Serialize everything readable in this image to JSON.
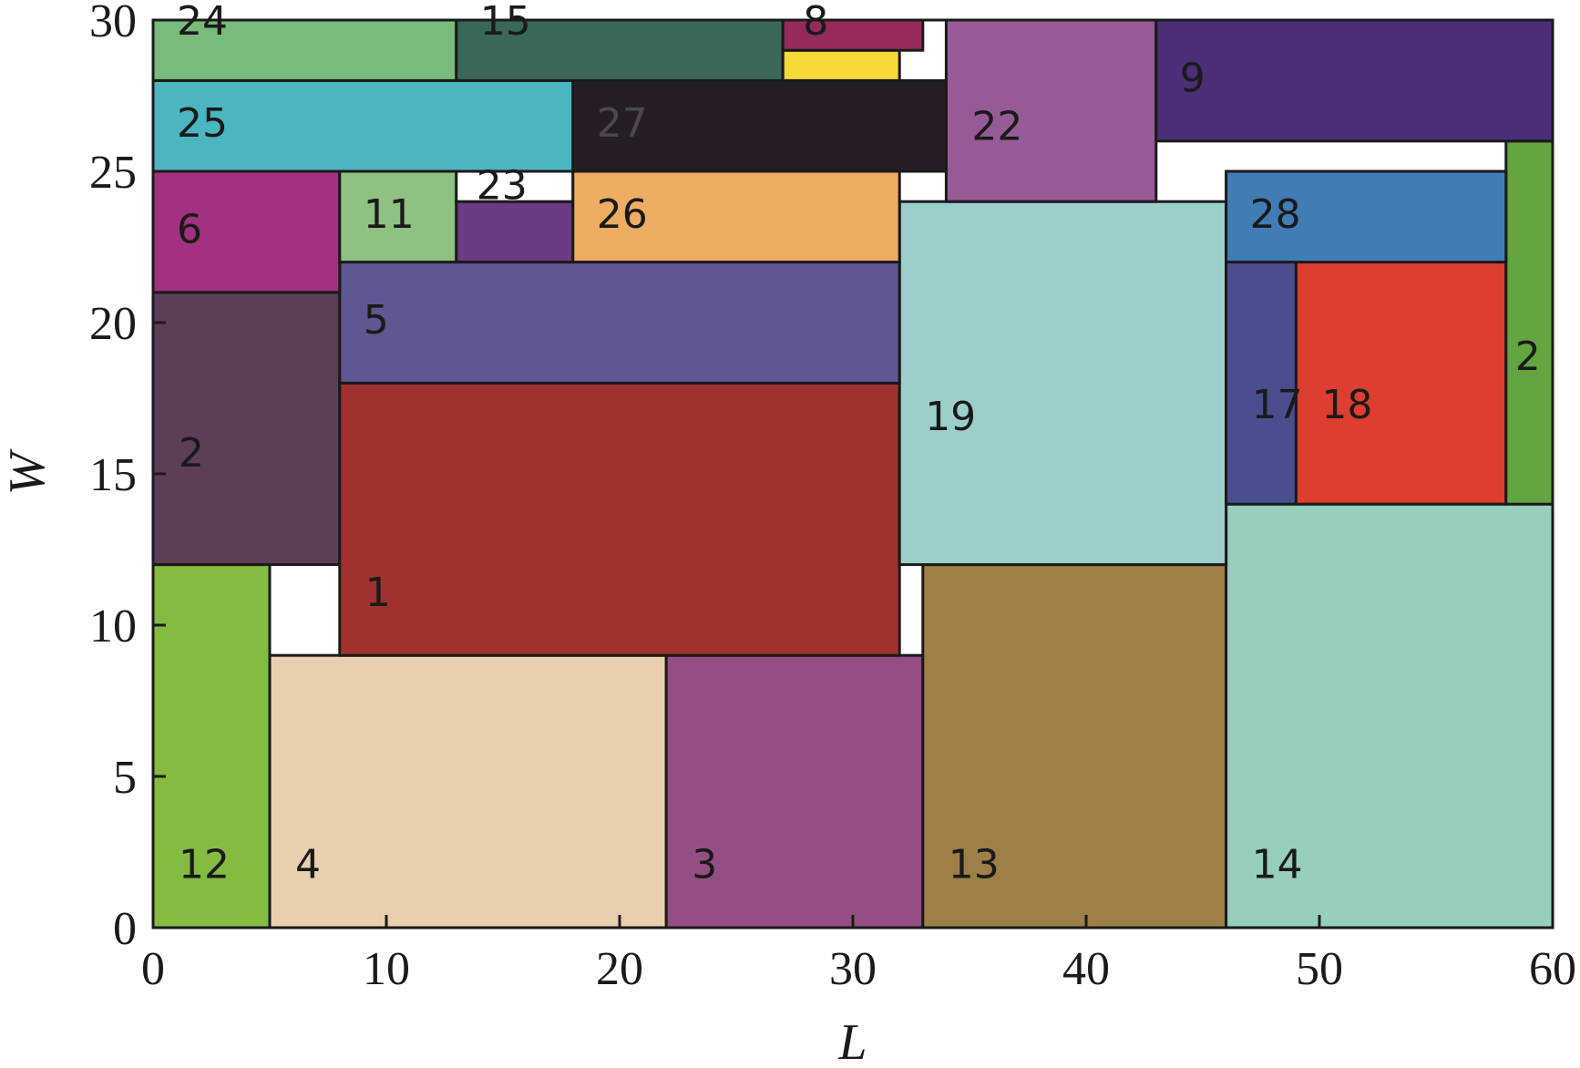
{
  "chart_data": {
    "type": "rectangle_packing",
    "xlabel": "L",
    "ylabel": "W",
    "xlim": [
      0,
      60
    ],
    "ylim": [
      0,
      30
    ],
    "x_ticks": [
      0,
      10,
      20,
      30,
      40,
      50,
      60
    ],
    "y_ticks": [
      0,
      5,
      10,
      15,
      20,
      25,
      30
    ],
    "rectangles": [
      {
        "id": "12",
        "x": 0,
        "y": 0,
        "w": 5,
        "h": 12,
        "color": "#86bb42"
      },
      {
        "id": "4",
        "x": 5,
        "y": 0,
        "w": 17,
        "h": 9,
        "color": "#e8cfae"
      },
      {
        "id": "3",
        "x": 22,
        "y": 0,
        "w": 11,
        "h": 9,
        "color": "#954e84"
      },
      {
        "id": "13",
        "x": 33,
        "y": 0,
        "w": 13,
        "h": 12,
        "color": "#9e7f47"
      },
      {
        "id": "14",
        "x": 46,
        "y": 0,
        "w": 14,
        "h": 14,
        "color": "#97cebf"
      },
      {
        "id": "2",
        "x": 0,
        "y": 12,
        "w": 8,
        "h": 9,
        "color": "#5d3e57"
      },
      {
        "id": "1",
        "x": 8,
        "y": 9,
        "w": 24,
        "h": 9,
        "color": "#a0312c"
      },
      {
        "id": "19",
        "x": 32,
        "y": 12,
        "w": 14,
        "h": 12,
        "color": "#9ccfcc"
      },
      {
        "id": "17",
        "x": 46,
        "y": 14,
        "w": 3,
        "h": 8,
        "color": "#4b4e8e"
      },
      {
        "id": "18",
        "x": 49,
        "y": 14,
        "w": 9,
        "h": 8,
        "color": "#dd3e2f"
      },
      {
        "id": "2",
        "x": 58,
        "y": 14,
        "w": 2,
        "h": 12,
        "color": "#63a53f"
      },
      {
        "id": "5",
        "x": 8,
        "y": 18,
        "w": 24,
        "h": 4,
        "color": "#5d5792"
      },
      {
        "id": "6",
        "x": 0,
        "y": 21,
        "w": 8,
        "h": 4,
        "color": "#a23182"
      },
      {
        "id": "11",
        "x": 8,
        "y": 22,
        "w": 5,
        "h": 3,
        "color": "#8ec182"
      },
      {
        "id": "",
        "x": 13,
        "y": 22,
        "w": 5,
        "h": 2,
        "color": "#6a3a82"
      },
      {
        "id": "23",
        "x": 13,
        "y": 24,
        "w": 5,
        "h": 1,
        "color": "#ffffff"
      },
      {
        "id": "26",
        "x": 18,
        "y": 22,
        "w": 14,
        "h": 3,
        "color": "#eead62"
      },
      {
        "id": "28",
        "x": 46,
        "y": 22,
        "w": 12,
        "h": 3,
        "color": "#417db5"
      },
      {
        "id": "22",
        "x": 34,
        "y": 24,
        "w": 9,
        "h": 6,
        "color": "#965b96"
      },
      {
        "id": "25",
        "x": 0,
        "y": 25,
        "w": 18,
        "h": 3,
        "color": "#4bb5c1"
      },
      {
        "id": "27",
        "x": 18,
        "y": 25,
        "w": 16,
        "h": 3,
        "color": "#271d27"
      },
      {
        "id": "9",
        "x": 43,
        "y": 26,
        "w": 17,
        "h": 4,
        "color": "#4b2e78"
      },
      {
        "id": "24",
        "x": 0,
        "y": 28,
        "w": 13,
        "h": 2,
        "color": "#7aba7a"
      },
      {
        "id": "15",
        "x": 13,
        "y": 28,
        "w": 14,
        "h": 2,
        "color": "#39685a"
      },
      {
        "id": "",
        "x": 27,
        "y": 28,
        "w": 5,
        "h": 1,
        "color": "#f5d936"
      },
      {
        "id": "8",
        "x": 27,
        "y": 29,
        "w": 6,
        "h": 1,
        "color": "#952b5a"
      }
    ]
  }
}
